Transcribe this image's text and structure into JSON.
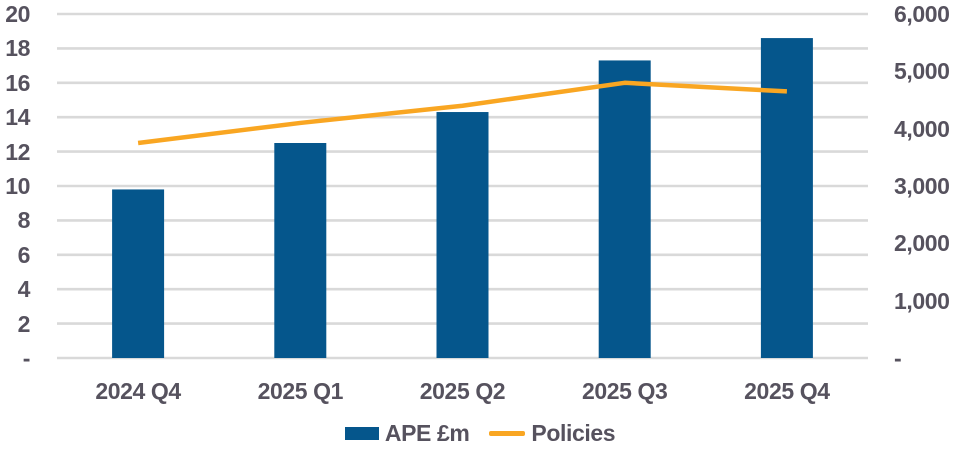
{
  "chart_data": {
    "type": "bar",
    "subtype": "combo-bar-line-dual-axis",
    "categories": [
      "2024 Q4",
      "2025 Q1",
      "2025 Q2",
      "2025 Q3",
      "2025 Q4"
    ],
    "series": [
      {
        "name": "APE £m",
        "render": "bar",
        "axis": "left",
        "color": "#05568C",
        "values": [
          9.8,
          12.5,
          14.3,
          17.3,
          18.6
        ]
      },
      {
        "name": "Policies",
        "render": "line",
        "axis": "right",
        "color": "#F9A622",
        "values": [
          3750,
          4100,
          4400,
          4800,
          4650
        ]
      }
    ],
    "title": "",
    "xlabel": "",
    "ylabel": "",
    "left_axis": {
      "min": 0,
      "max": 20,
      "step": 2,
      "tick_labels_top_to_bottom": [
        "20",
        "18",
        "16",
        "14",
        "12",
        "10",
        "8",
        "6",
        "4",
        "2",
        "-"
      ]
    },
    "right_axis": {
      "min": 0,
      "max": 6000,
      "step": 1000,
      "tick_labels_top_to_bottom": [
        "6,000",
        "5,000",
        "4,000",
        "3,000",
        "2,000",
        "1,000",
        "-"
      ]
    },
    "grid": "horizontal",
    "legend_position": "bottom-center"
  },
  "legend": {
    "ape_label": "APE £m",
    "policies_label": "Policies"
  },
  "colors": {
    "bar": "#05568C",
    "line": "#F9A622",
    "grid": "#D9D9D9",
    "label": "#56525E",
    "background": "#FFFFFF"
  }
}
